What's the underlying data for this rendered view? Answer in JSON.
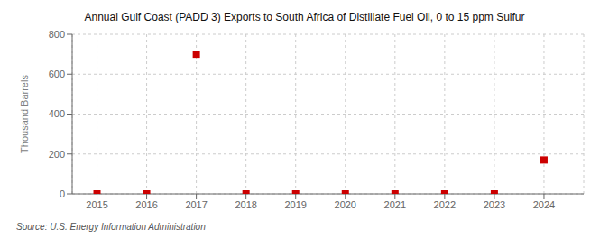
{
  "chart_data": {
    "type": "scatter",
    "title": "Annual Gulf Coast (PADD 3) Exports to South Africa of Distillate Fuel Oil, 0 to 15 ppm Sulfur",
    "ylabel": "Thousand Barrels",
    "annotation": "Source: U.S. Energy Information Administration",
    "x": [
      2015,
      2016,
      2017,
      2018,
      2019,
      2020,
      2021,
      2022,
      2023,
      2024
    ],
    "values": [
      0,
      0,
      700,
      0,
      0,
      0,
      0,
      0,
      0,
      170
    ],
    "color": "#cc0000",
    "marker": "square",
    "xlim": [
      2014.5,
      2024.8
    ],
    "ylim": [
      0,
      800
    ],
    "xticks": [
      2015,
      2016,
      2017,
      2018,
      2019,
      2020,
      2021,
      2022,
      2023,
      2024
    ],
    "yticks": [
      0,
      200,
      400,
      600,
      800
    ],
    "grid": true
  }
}
